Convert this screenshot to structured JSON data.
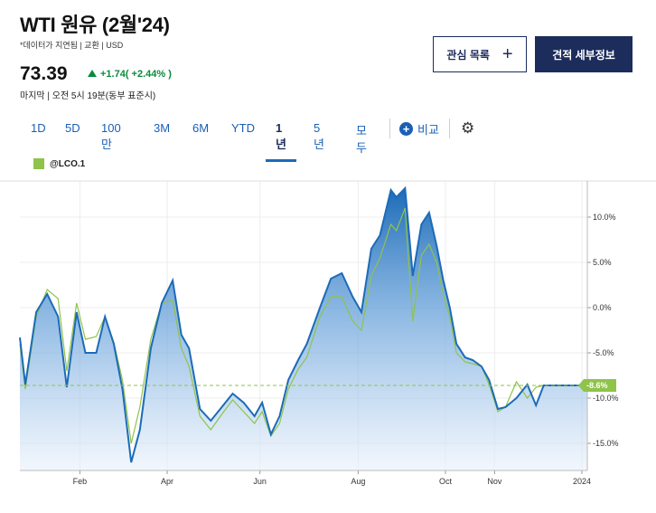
{
  "header": {
    "title": "WTI 원유 (2월'24)",
    "subtitle": "*데이터가 지연됨 | 교환 | USD",
    "price": "73.39",
    "change": "+1.74( +2.44% )",
    "meta": "마지막 | 오전 5시 19분(동부 표준시)"
  },
  "actions": {
    "watchlist_label": "관심 목록",
    "quote_label": "견적 세부정보"
  },
  "tabs": [
    "1D",
    "5D",
    "100만",
    "3M",
    "6M",
    "YTD",
    "1년",
    "5년",
    "모두"
  ],
  "active_tab": "1년",
  "compare_label": "비교",
  "icons": {
    "compare": "plus-circle-icon",
    "settings": "gear-icon",
    "watch": "plus-icon"
  },
  "colors": {
    "accent": "#1c2c5b",
    "series_main": "#1c6bb8",
    "series_compare": "#8fc34a",
    "positive": "#0b8a3b"
  },
  "chart_data": {
    "type": "area",
    "legend": [
      {
        "name": "@LCO.1",
        "color": "#8fc34a"
      }
    ],
    "x_tick_labels": [
      "Feb",
      "Apr",
      "Jun",
      "Aug",
      "Oct",
      "Nov",
      "2024"
    ],
    "y_tick_labels": [
      "10.0%",
      "5.0%",
      "0.0%",
      "-5.0%",
      "-10.0%",
      "-15.0%"
    ],
    "ylim": [
      -18,
      14
    ],
    "xlim": [
      0,
      52
    ],
    "x_ticks": [
      5.5,
      13.5,
      22,
      31,
      39,
      43.5,
      51.5
    ],
    "y_ticks": [
      10,
      5,
      0,
      -5,
      -10,
      -15
    ],
    "last_value_label": "-8.6%",
    "reference_value": -8.6,
    "series": [
      {
        "name": "WTI",
        "x": [
          0,
          0.5,
          1.5,
          2.5,
          3.5,
          4.3,
          5.2,
          6,
          7,
          7.8,
          8.6,
          9.4,
          10.2,
          11,
          12,
          13,
          14,
          14.8,
          15.5,
          16.5,
          17.5,
          18.5,
          19.5,
          20.5,
          21.5,
          22.2,
          23,
          23.8,
          24.6,
          25.5,
          26.3,
          27.5,
          28.5,
          29.5,
          30.5,
          31.3,
          32.2,
          33,
          34,
          34.5,
          35.3,
          36,
          36.8,
          37.5,
          38.2,
          38.8,
          39.4,
          40,
          40.8,
          41.5,
          42.3,
          43,
          43.8,
          44.5,
          45.5,
          46.5,
          47.3,
          48,
          48.8,
          49.6,
          50.5,
          51.3,
          52
        ],
        "y": [
          -3.3,
          -8.5,
          -0.5,
          1.5,
          -1,
          -8.8,
          -0.5,
          -5,
          -5,
          -1,
          -4,
          -9,
          -17.1,
          -13.5,
          -4.5,
          0.5,
          3,
          -3,
          -4.5,
          -11.2,
          -12.5,
          -11,
          -9.5,
          -10.5,
          -12,
          -10.5,
          -14,
          -12,
          -8,
          -5.8,
          -4,
          0,
          3.2,
          3.8,
          1.2,
          -0.5,
          6.5,
          8,
          13,
          12.2,
          13.2,
          3.5,
          9.2,
          10.5,
          6.8,
          3,
          0,
          -4,
          -5.5,
          -5.8,
          -6.5,
          -8,
          -11.2,
          -11,
          -10,
          -8.5,
          -10.8,
          -8.6,
          -8.6,
          -8.6,
          -8.6,
          -8.6,
          -8.6
        ],
        "color": "#1c6bb8"
      },
      {
        "name": "@LCO.1",
        "x": [
          0,
          0.5,
          1.5,
          2.5,
          3.5,
          4.3,
          5.2,
          6,
          7,
          7.8,
          8.6,
          9.4,
          10.2,
          11,
          12,
          13,
          14,
          14.8,
          15.5,
          16.5,
          17.5,
          18.5,
          19.5,
          20.5,
          21.5,
          22.2,
          23,
          23.8,
          24.6,
          25.5,
          26.3,
          27.5,
          28.5,
          29.5,
          30.5,
          31.3,
          32.2,
          33,
          34,
          34.5,
          35.3,
          36,
          36.8,
          37.5,
          38.2,
          38.8,
          39.4,
          40,
          40.8,
          41.5,
          42.3,
          43,
          43.8,
          44.5,
          45.5,
          46.5,
          47.3,
          48,
          48.8,
          49.6,
          50.5,
          51.3,
          52
        ],
        "y": [
          -4,
          -9,
          -1,
          2,
          1,
          -7,
          0.5,
          -3.5,
          -3.2,
          -1,
          -3.8,
          -8,
          -15,
          -11,
          -3.5,
          0.5,
          0.8,
          -4.5,
          -6.5,
          -12,
          -13.5,
          -11.8,
          -10.2,
          -11.5,
          -12.8,
          -11.5,
          -14.2,
          -12.8,
          -9,
          -6.8,
          -5.5,
          -1,
          1.2,
          1.2,
          -1.5,
          -2.5,
          3.5,
          5.5,
          9.2,
          8.5,
          11,
          -1.5,
          5.8,
          7,
          5,
          1.5,
          -1,
          -5,
          -6,
          -6.2,
          -6.5,
          -8.5,
          -11.5,
          -11,
          -8.2,
          -10,
          -8.8,
          -8.6,
          -8.6,
          -8.6,
          -8.6,
          -8.6,
          -8.6
        ],
        "color": "#8fc34a"
      }
    ]
  }
}
